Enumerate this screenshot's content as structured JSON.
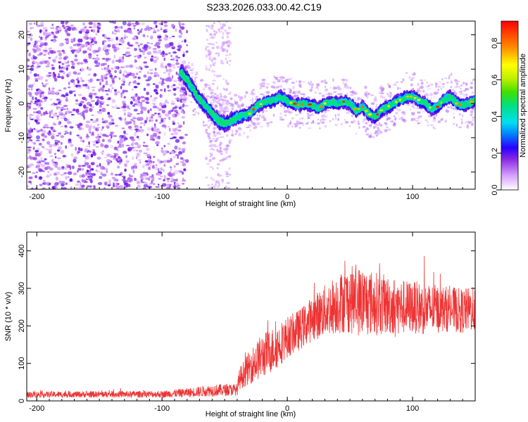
{
  "title": "S233.2026.033.00.42.C19",
  "chart_data": [
    {
      "type": "heatmap",
      "xlabel": "Height of straight line (km)",
      "ylabel": "Frequency (Hz)",
      "xlim": [
        -208,
        150
      ],
      "ylim": [
        -25,
        24
      ],
      "xticks": [
        -200,
        -100,
        0,
        100
      ],
      "yticks": [
        -20,
        -10,
        0,
        10,
        20
      ],
      "colorbar": {
        "label": "Normalized spectral amplitude",
        "range": [
          0,
          0.92
        ],
        "ticks": [
          0,
          0.2,
          0.4,
          0.6,
          0.8
        ],
        "tick_labels": [
          "0.0",
          "0.2",
          "0.4",
          "0.6",
          "0.8"
        ]
      },
      "ridge": {
        "x": [
          -85,
          -80,
          -75,
          -70,
          -65,
          -60,
          -55,
          -50,
          -45,
          -40,
          -35,
          -30,
          -25,
          -20,
          -15,
          -10,
          -5,
          0,
          5,
          10,
          15,
          20,
          25,
          30,
          35,
          40,
          45,
          50,
          55,
          60,
          65,
          70,
          75,
          80,
          85,
          90,
          95,
          100,
          105,
          110,
          115,
          120,
          125,
          130,
          135,
          140,
          145,
          150
        ],
        "freq": [
          9,
          7,
          4,
          1,
          -1,
          -3,
          -5,
          -6,
          -5,
          -4,
          -3.5,
          -3,
          -1,
          0,
          0.5,
          1,
          2,
          0.5,
          0,
          -0.5,
          0,
          -0.5,
          -1.5,
          0,
          0.5,
          0,
          0.5,
          0,
          -2,
          -1,
          -3,
          -4,
          -2,
          -1,
          0,
          1,
          2,
          2,
          1,
          0,
          -1.5,
          -1,
          1,
          2,
          0,
          -0.5,
          0,
          1
        ]
      }
    },
    {
      "type": "line",
      "xlabel": "Height of straight line (km)",
      "ylabel": "SNR (10 * v/v)",
      "xlim": [
        -208,
        150
      ],
      "ylim": [
        0,
        450
      ],
      "xticks": [
        -200,
        -100,
        0,
        100
      ],
      "yticks": [
        0,
        100,
        200,
        300,
        400
      ],
      "series": [
        {
          "name": "SNR",
          "color": "#ee3333",
          "envelope_x": [
            -208,
            -100,
            -80,
            -60,
            -40,
            -38,
            -30,
            -20,
            -10,
            0,
            10,
            20,
            30,
            40,
            50,
            60,
            70,
            80,
            90,
            100,
            110,
            120,
            130,
            140,
            150
          ],
          "envelope_mean": [
            17,
            18,
            22,
            28,
            30,
            60,
            90,
            120,
            140,
            170,
            190,
            220,
            240,
            260,
            270,
            265,
            260,
            255,
            250,
            250,
            245,
            245,
            245,
            240,
            245
          ],
          "envelope_spread": [
            8,
            9,
            12,
            16,
            16,
            30,
            45,
            60,
            60,
            55,
            55,
            60,
            70,
            80,
            90,
            95,
            85,
            80,
            75,
            70,
            70,
            65,
            60,
            60,
            60
          ]
        }
      ]
    }
  ]
}
